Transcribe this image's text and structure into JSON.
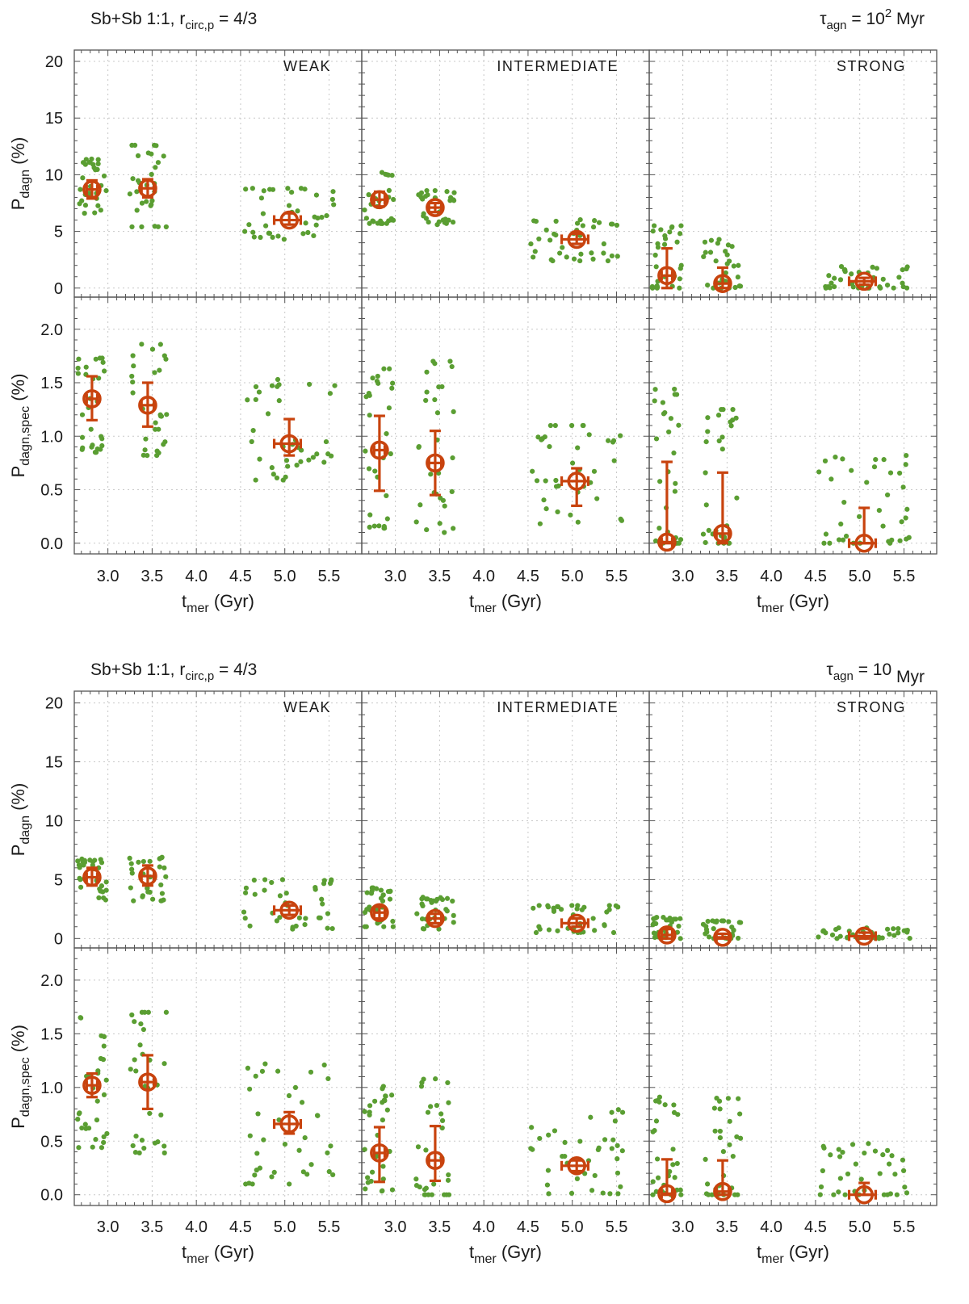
{
  "figure": {
    "blocks": [
      {
        "header_left": {
          "main": "Sb+Sb 1:1, r",
          "sub": "circ,p",
          "rest": " = 4/3"
        },
        "header_right": {
          "main": "τ",
          "sub": "agn",
          "mid": " = 10",
          "sup": "2",
          "rest": " Myr"
        }
      },
      {
        "header_left": {
          "main": "Sb+Sb 1:1, r",
          "sub": "circ,p",
          "rest": " = 4/3"
        },
        "header_right": {
          "main": "τ",
          "sub": "agn",
          "mid": " = 10",
          "sup": "",
          "rest": " Myr"
        }
      }
    ],
    "columns": [
      "WEAK",
      "INTERMEDIATE",
      "STRONG"
    ],
    "xlabel": {
      "main": "t",
      "sub": "mer",
      "rest": " (Gyr)"
    },
    "ylabel_top": {
      "main": "P",
      "sub": "dagn",
      "rest": " (%)"
    },
    "ylabel_bottom": {
      "main": "P",
      "sub": "dagn,spec",
      "rest": " (%)"
    }
  },
  "chart_data": [
    {
      "type": "scatter",
      "title": "Sb+Sb 1:1, r_circ,p = 4/3 — tau_agn = 10^2 Myr",
      "xlim": [
        2.62,
        5.87
      ],
      "xticks": [
        "3.0",
        "3.5",
        "4.0",
        "4.5",
        "5.0",
        "5.5"
      ],
      "upper": {
        "ylabel": "P_dagn (%)",
        "ylim": [
          -0.8,
          21
        ],
        "yticks": [
          "0",
          "5",
          "10",
          "15",
          "20"
        ],
        "panels": [
          {
            "label": "WEAK",
            "groups": [
              {
                "tmer": 2.82,
                "mean": 8.7,
                "err": [
                  7.9,
                  9.5
                ],
                "xerr": [
                  2.76,
                  2.88
                ],
                "spread": 0.17,
                "lo": 6.6,
                "hi": 11.4,
                "n": 30
              },
              {
                "tmer": 3.45,
                "mean": 8.8,
                "err": [
                  8.0,
                  9.6
                ],
                "xerr": [
                  3.38,
                  3.52
                ],
                "spread": 0.22,
                "lo": 5.4,
                "hi": 12.6,
                "n": 30
              },
              {
                "tmer": 5.05,
                "mean": 6.0,
                "err": [
                  5.6,
                  6.6
                ],
                "xerr": [
                  4.88,
                  5.18
                ],
                "spread": 0.52,
                "lo": 4.3,
                "hi": 8.8,
                "n": 38
              }
            ]
          },
          {
            "label": "INTERMEDIATE",
            "groups": [
              {
                "tmer": 2.82,
                "mean": 7.8,
                "err": [
                  7.2,
                  8.5
                ],
                "xerr": [
                  2.76,
                  2.88
                ],
                "spread": 0.17,
                "lo": 5.7,
                "hi": 10.2,
                "n": 30
              },
              {
                "tmer": 3.45,
                "mean": 7.1,
                "err": [
                  6.7,
                  7.5
                ],
                "xerr": [
                  3.38,
                  3.52
                ],
                "spread": 0.22,
                "lo": 5.6,
                "hi": 8.6,
                "n": 30
              },
              {
                "tmer": 5.05,
                "mean": 4.3,
                "err": [
                  3.9,
                  4.8
                ],
                "xerr": [
                  4.88,
                  5.18
                ],
                "spread": 0.52,
                "lo": 2.4,
                "hi": 6.1,
                "n": 38
              }
            ]
          },
          {
            "label": "STRONG",
            "groups": [
              {
                "tmer": 2.82,
                "mean": 1.1,
                "err": [
                  0.0,
                  3.5
                ],
                "xerr": [
                  2.76,
                  2.88
                ],
                "spread": 0.17,
                "lo": 0.0,
                "hi": 5.5,
                "n": 30
              },
              {
                "tmer": 3.45,
                "mean": 0.4,
                "err": [
                  0.0,
                  1.8
                ],
                "xerr": [
                  3.38,
                  3.52
                ],
                "spread": 0.22,
                "lo": 0.0,
                "hi": 4.4,
                "n": 30
              },
              {
                "tmer": 5.05,
                "mean": 0.6,
                "err": [
                  0.3,
                  0.9
                ],
                "xerr": [
                  4.88,
                  5.18
                ],
                "spread": 0.52,
                "lo": 0.0,
                "hi": 1.9,
                "n": 38
              }
            ]
          }
        ]
      },
      "lower": {
        "ylabel": "P_dagn,spec (%)",
        "ylim": [
          -0.1,
          2.3
        ],
        "yticks": [
          "0.0",
          "0.5",
          "1.0",
          "1.5",
          "2.0"
        ],
        "panels": [
          {
            "label": "WEAK",
            "groups": [
              {
                "tmer": 2.82,
                "mean": 1.35,
                "err": [
                  1.15,
                  1.56
                ],
                "xerr": [
                  2.76,
                  2.88
                ],
                "spread": 0.17,
                "lo": 0.85,
                "hi": 1.73,
                "n": 30
              },
              {
                "tmer": 3.45,
                "mean": 1.29,
                "err": [
                  1.09,
                  1.5
                ],
                "xerr": [
                  3.38,
                  3.52
                ],
                "spread": 0.22,
                "lo": 0.82,
                "hi": 1.86,
                "n": 30
              },
              {
                "tmer": 5.05,
                "mean": 0.93,
                "err": [
                  0.82,
                  1.16
                ],
                "xerr": [
                  4.88,
                  5.18
                ],
                "spread": 0.52,
                "lo": 0.59,
                "hi": 1.53,
                "n": 38
              }
            ]
          },
          {
            "label": "INTERMEDIATE",
            "groups": [
              {
                "tmer": 2.82,
                "mean": 0.87,
                "err": [
                  0.49,
                  1.19
                ],
                "xerr": [
                  2.76,
                  2.88
                ],
                "spread": 0.17,
                "lo": 0.14,
                "hi": 1.63,
                "n": 30
              },
              {
                "tmer": 3.45,
                "mean": 0.75,
                "err": [
                  0.45,
                  1.05
                ],
                "xerr": [
                  3.38,
                  3.52
                ],
                "spread": 0.22,
                "lo": 0.1,
                "hi": 1.7,
                "n": 30
              },
              {
                "tmer": 5.05,
                "mean": 0.58,
                "err": [
                  0.35,
                  0.7
                ],
                "xerr": [
                  4.88,
                  5.18
                ],
                "spread": 0.52,
                "lo": 0.15,
                "hi": 1.1,
                "n": 38
              }
            ]
          },
          {
            "label": "STRONG",
            "groups": [
              {
                "tmer": 2.82,
                "mean": 0.01,
                "err": [
                  0.0,
                  0.76
                ],
                "xerr": [
                  2.76,
                  2.88
                ],
                "spread": 0.17,
                "lo": 0.0,
                "hi": 1.44,
                "n": 30
              },
              {
                "tmer": 3.45,
                "mean": 0.09,
                "err": [
                  0.0,
                  0.66
                ],
                "xerr": [
                  3.38,
                  3.52
                ],
                "spread": 0.22,
                "lo": 0.0,
                "hi": 1.25,
                "n": 30
              },
              {
                "tmer": 5.05,
                "mean": 0.0,
                "err": [
                  0.0,
                  0.33
                ],
                "xerr": [
                  4.88,
                  5.18
                ],
                "spread": 0.52,
                "lo": 0.0,
                "hi": 0.82,
                "n": 38
              }
            ]
          }
        ]
      }
    },
    {
      "type": "scatter",
      "title": "Sb+Sb 1:1, r_circ,p = 4/3 — tau_agn = 10 Myr",
      "xlim": [
        2.62,
        5.87
      ],
      "xticks": [
        "3.0",
        "3.5",
        "4.0",
        "4.5",
        "5.0",
        "5.5"
      ],
      "upper": {
        "ylabel": "P_dagn (%)",
        "ylim": [
          -0.8,
          21
        ],
        "yticks": [
          "0",
          "5",
          "10",
          "15",
          "20"
        ],
        "panels": [
          {
            "label": "WEAK",
            "groups": [
              {
                "tmer": 2.82,
                "mean": 5.2,
                "err": [
                  4.5,
                  6.0
                ],
                "xerr": [
                  2.76,
                  2.88
                ],
                "spread": 0.17,
                "lo": 3.0,
                "hi": 6.8,
                "n": 30
              },
              {
                "tmer": 3.45,
                "mean": 5.3,
                "err": [
                  4.5,
                  6.2
                ],
                "xerr": [
                  3.38,
                  3.52
                ],
                "spread": 0.22,
                "lo": 3.2,
                "hi": 6.9,
                "n": 30
              },
              {
                "tmer": 5.05,
                "mean": 2.4,
                "err": [
                  2.0,
                  2.8
                ],
                "xerr": [
                  4.88,
                  5.18
                ],
                "spread": 0.52,
                "lo": 0.8,
                "hi": 5.0,
                "n": 38
              }
            ]
          },
          {
            "label": "INTERMEDIATE",
            "groups": [
              {
                "tmer": 2.82,
                "mean": 2.2,
                "err": [
                  1.7,
                  2.7
                ],
                "xerr": [
                  2.76,
                  2.88
                ],
                "spread": 0.17,
                "lo": 1.0,
                "hi": 4.3,
                "n": 30
              },
              {
                "tmer": 3.45,
                "mean": 1.7,
                "err": [
                  1.3,
                  2.1
                ],
                "xerr": [
                  3.38,
                  3.52
                ],
                "spread": 0.22,
                "lo": 0.8,
                "hi": 3.5,
                "n": 30
              },
              {
                "tmer": 5.05,
                "mean": 1.3,
                "err": [
                  1.0,
                  1.7
                ],
                "xerr": [
                  4.88,
                  5.18
                ],
                "spread": 0.52,
                "lo": 0.5,
                "hi": 2.8,
                "n": 38
              }
            ]
          },
          {
            "label": "STRONG",
            "groups": [
              {
                "tmer": 2.82,
                "mean": 0.3,
                "err": [
                  0.0,
                  0.8
                ],
                "xerr": [
                  2.76,
                  2.88
                ],
                "spread": 0.17,
                "lo": 0.0,
                "hi": 1.8,
                "n": 30
              },
              {
                "tmer": 3.45,
                "mean": 0.1,
                "err": [
                  0.0,
                  0.4
                ],
                "xerr": [
                  3.38,
                  3.52
                ],
                "spread": 0.22,
                "lo": 0.0,
                "hi": 1.5,
                "n": 30
              },
              {
                "tmer": 5.05,
                "mean": 0.2,
                "err": [
                  0.0,
                  0.5
                ],
                "xerr": [
                  4.88,
                  5.18
                ],
                "spread": 0.52,
                "lo": 0.0,
                "hi": 0.9,
                "n": 38
              }
            ]
          }
        ]
      },
      "lower": {
        "ylabel": "P_dagn,spec (%)",
        "ylim": [
          -0.1,
          2.3
        ],
        "yticks": [
          "0.0",
          "0.5",
          "1.0",
          "1.5",
          "2.0"
        ],
        "panels": [
          {
            "label": "WEAK",
            "groups": [
              {
                "tmer": 2.82,
                "mean": 1.02,
                "err": [
                  0.91,
                  1.13
                ],
                "xerr": [
                  2.76,
                  2.88
                ],
                "spread": 0.17,
                "lo": 0.44,
                "hi": 1.68,
                "n": 30
              },
              {
                "tmer": 3.45,
                "mean": 1.05,
                "err": [
                  0.8,
                  1.3
                ],
                "xerr": [
                  3.38,
                  3.52
                ],
                "spread": 0.22,
                "lo": 0.39,
                "hi": 1.7,
                "n": 30
              },
              {
                "tmer": 5.05,
                "mean": 0.66,
                "err": [
                  0.57,
                  0.77
                ],
                "xerr": [
                  4.88,
                  5.18
                ],
                "spread": 0.52,
                "lo": 0.1,
                "hi": 1.23,
                "n": 38
              }
            ]
          },
          {
            "label": "INTERMEDIATE",
            "groups": [
              {
                "tmer": 2.82,
                "mean": 0.39,
                "err": [
                  0.12,
                  0.63
                ],
                "xerr": [
                  2.76,
                  2.88
                ],
                "spread": 0.17,
                "lo": 0.02,
                "hi": 1.01,
                "n": 30
              },
              {
                "tmer": 3.45,
                "mean": 0.32,
                "err": [
                  0.13,
                  0.64
                ],
                "xerr": [
                  3.38,
                  3.52
                ],
                "spread": 0.22,
                "lo": 0.0,
                "hi": 1.08,
                "n": 30
              },
              {
                "tmer": 5.05,
                "mean": 0.27,
                "err": [
                  0.22,
                  0.32
                ],
                "xerr": [
                  4.88,
                  5.18
                ],
                "spread": 0.52,
                "lo": 0.01,
                "hi": 0.81,
                "n": 38
              }
            ]
          },
          {
            "label": "STRONG",
            "groups": [
              {
                "tmer": 2.82,
                "mean": 0.01,
                "err": [
                  0.0,
                  0.33
                ],
                "xerr": [
                  2.76,
                  2.88
                ],
                "spread": 0.17,
                "lo": 0.0,
                "hi": 0.91,
                "n": 30
              },
              {
                "tmer": 3.45,
                "mean": 0.03,
                "err": [
                  0.0,
                  0.32
                ],
                "xerr": [
                  3.38,
                  3.52
                ],
                "spread": 0.22,
                "lo": 0.0,
                "hi": 0.9,
                "n": 30
              },
              {
                "tmer": 5.05,
                "mean": 0.0,
                "err": [
                  0.0,
                  0.11
                ],
                "xerr": [
                  4.88,
                  5.18
                ],
                "spread": 0.52,
                "lo": 0.0,
                "hi": 0.48,
                "n": 38
              }
            ]
          }
        ]
      }
    }
  ]
}
